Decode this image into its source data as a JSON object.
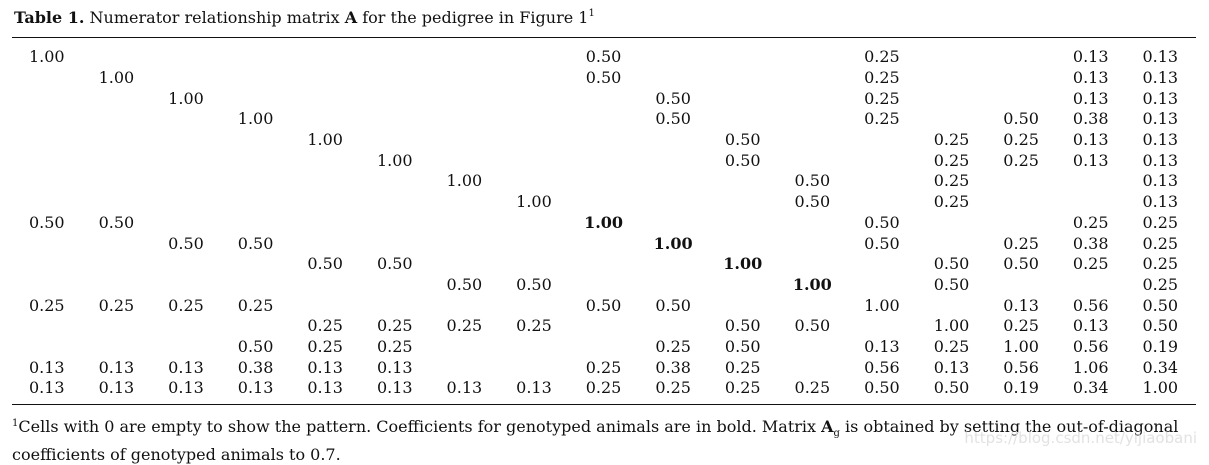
{
  "caption": {
    "label": "Table 1.",
    "text_before": " Numerator relationship matrix ",
    "matrix_symbol": "A",
    "text_after": " for the pedigree in Figure 1",
    "footnote_mark": "1"
  },
  "bold_diagonal_rows": [
    8,
    9,
    10,
    11
  ],
  "matrix": [
    [
      "1.00",
      "",
      "",
      "",
      "",
      "",
      "",
      "",
      "0.50",
      "",
      "",
      "",
      "0.25",
      "",
      "",
      "0.13",
      "0.13"
    ],
    [
      "",
      "1.00",
      "",
      "",
      "",
      "",
      "",
      "",
      "0.50",
      "",
      "",
      "",
      "0.25",
      "",
      "",
      "0.13",
      "0.13"
    ],
    [
      "",
      "",
      "1.00",
      "",
      "",
      "",
      "",
      "",
      "",
      "0.50",
      "",
      "",
      "0.25",
      "",
      "",
      "0.13",
      "0.13"
    ],
    [
      "",
      "",
      "",
      "1.00",
      "",
      "",
      "",
      "",
      "",
      "0.50",
      "",
      "",
      "0.25",
      "",
      "0.50",
      "0.38",
      "0.13"
    ],
    [
      "",
      "",
      "",
      "",
      "1.00",
      "",
      "",
      "",
      "",
      "",
      "0.50",
      "",
      "",
      "0.25",
      "0.25",
      "0.13",
      "0.13"
    ],
    [
      "",
      "",
      "",
      "",
      "",
      "1.00",
      "",
      "",
      "",
      "",
      "0.50",
      "",
      "",
      "0.25",
      "0.25",
      "0.13",
      "0.13"
    ],
    [
      "",
      "",
      "",
      "",
      "",
      "",
      "1.00",
      "",
      "",
      "",
      "",
      "0.50",
      "",
      "0.25",
      "",
      "",
      "0.13"
    ],
    [
      "",
      "",
      "",
      "",
      "",
      "",
      "",
      "1.00",
      "",
      "",
      "",
      "0.50",
      "",
      "0.25",
      "",
      "",
      "0.13"
    ],
    [
      "0.50",
      "0.50",
      "",
      "",
      "",
      "",
      "",
      "",
      "1.00",
      "",
      "",
      "",
      "0.50",
      "",
      "",
      "0.25",
      "0.25"
    ],
    [
      "",
      "",
      "0.50",
      "0.50",
      "",
      "",
      "",
      "",
      "",
      "1.00",
      "",
      "",
      "0.50",
      "",
      "0.25",
      "0.38",
      "0.25"
    ],
    [
      "",
      "",
      "",
      "",
      "0.50",
      "0.50",
      "",
      "",
      "",
      "",
      "1.00",
      "",
      "",
      "0.50",
      "0.50",
      "0.25",
      "0.25"
    ],
    [
      "",
      "",
      "",
      "",
      "",
      "",
      "0.50",
      "0.50",
      "",
      "",
      "",
      "1.00",
      "",
      "0.50",
      "",
      "",
      "0.25"
    ],
    [
      "0.25",
      "0.25",
      "0.25",
      "0.25",
      "",
      "",
      "",
      "",
      "0.50",
      "0.50",
      "",
      "",
      "1.00",
      "",
      "0.13",
      "0.56",
      "0.50"
    ],
    [
      "",
      "",
      "",
      "",
      "0.25",
      "0.25",
      "0.25",
      "0.25",
      "",
      "",
      "0.50",
      "0.50",
      "",
      "1.00",
      "0.25",
      "0.13",
      "0.50"
    ],
    [
      "",
      "",
      "",
      "0.50",
      "0.25",
      "0.25",
      "",
      "",
      "",
      "0.25",
      "0.50",
      "",
      "0.13",
      "0.25",
      "1.00",
      "0.56",
      "0.19"
    ],
    [
      "0.13",
      "0.13",
      "0.13",
      "0.38",
      "0.13",
      "0.13",
      "",
      "",
      "0.25",
      "0.38",
      "0.25",
      "",
      "0.56",
      "0.13",
      "0.56",
      "1.06",
      "0.34"
    ],
    [
      "0.13",
      "0.13",
      "0.13",
      "0.13",
      "0.13",
      "0.13",
      "0.13",
      "0.13",
      "0.25",
      "0.25",
      "0.25",
      "0.25",
      "0.50",
      "0.50",
      "0.19",
      "0.34",
      "1.00"
    ]
  ],
  "footnote": {
    "mark": "1",
    "text_1": "Cells with 0 are empty to show the pattern. Coefficients for genotyped animals are in bold. Matrix ",
    "symbol": "A",
    "symbol_sub": "g",
    "text_2": " is obtained by setting the out-of-diagonal coefficients of genotyped animals to 0.7."
  },
  "watermark": "https://blog.csdn.net/yijiaobani"
}
